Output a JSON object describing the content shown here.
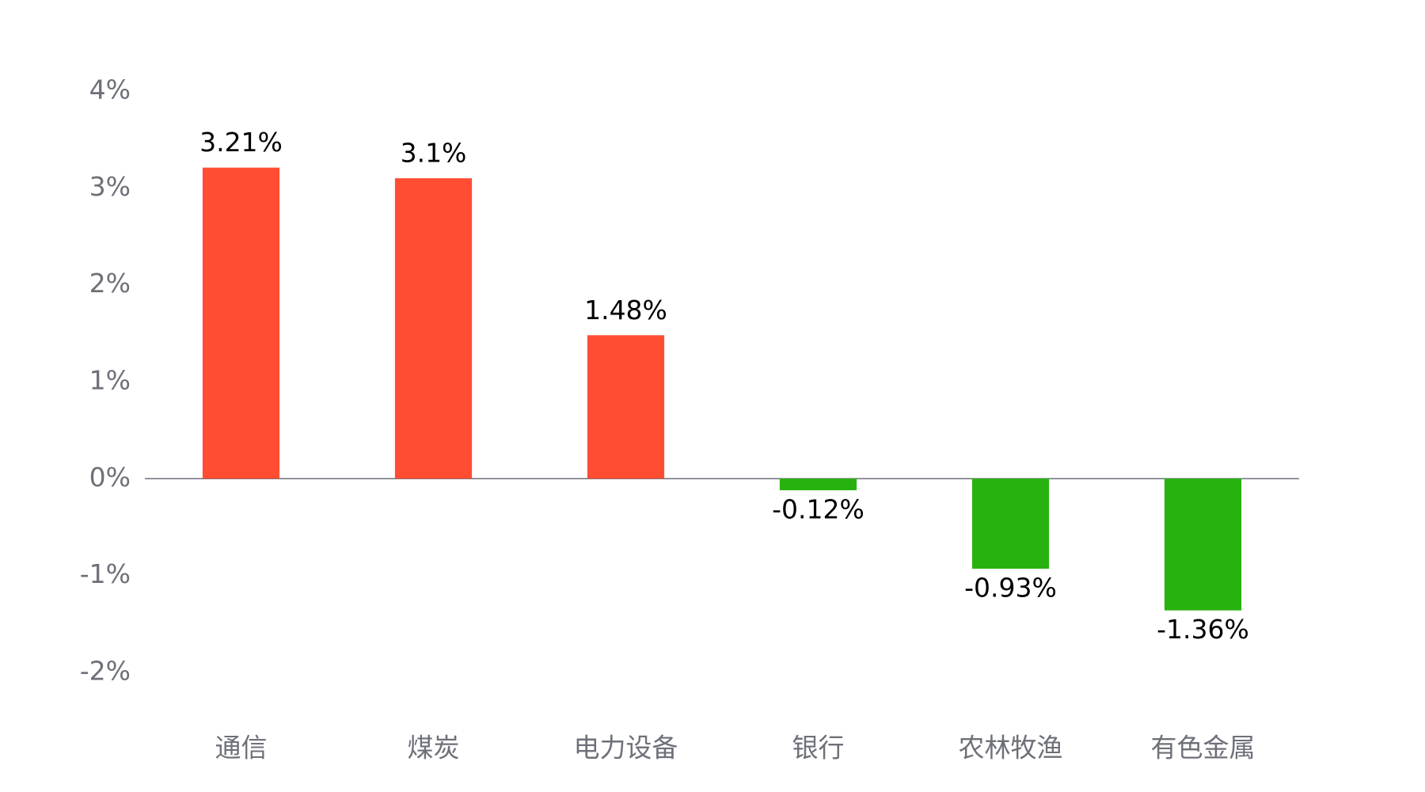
{
  "chart_data": {
    "type": "bar",
    "categories": [
      "通信",
      "煤炭",
      "电力设备",
      "银行",
      "农林牧渔",
      "有色金属"
    ],
    "values": [
      3.21,
      3.1,
      1.48,
      -0.12,
      -0.93,
      -1.36
    ],
    "value_labels": [
      "3.21%",
      "3.1%",
      "1.48%",
      "-0.12%",
      "-0.93%",
      "-1.36%"
    ],
    "colors": [
      "#ff4d33",
      "#ff4d33",
      "#ff4d33",
      "#28b20f",
      "#28b20f",
      "#28b20f"
    ],
    "ylim": [
      -2,
      4
    ],
    "yticks": [
      {
        "value": 4,
        "label": "4%"
      },
      {
        "value": 3,
        "label": "3%"
      },
      {
        "value": 2,
        "label": "2%"
      },
      {
        "value": 1,
        "label": "1%"
      },
      {
        "value": 0,
        "label": "0%"
      },
      {
        "value": -1,
        "label": "-1%"
      },
      {
        "value": -2,
        "label": "-2%"
      }
    ],
    "grid": false
  }
}
